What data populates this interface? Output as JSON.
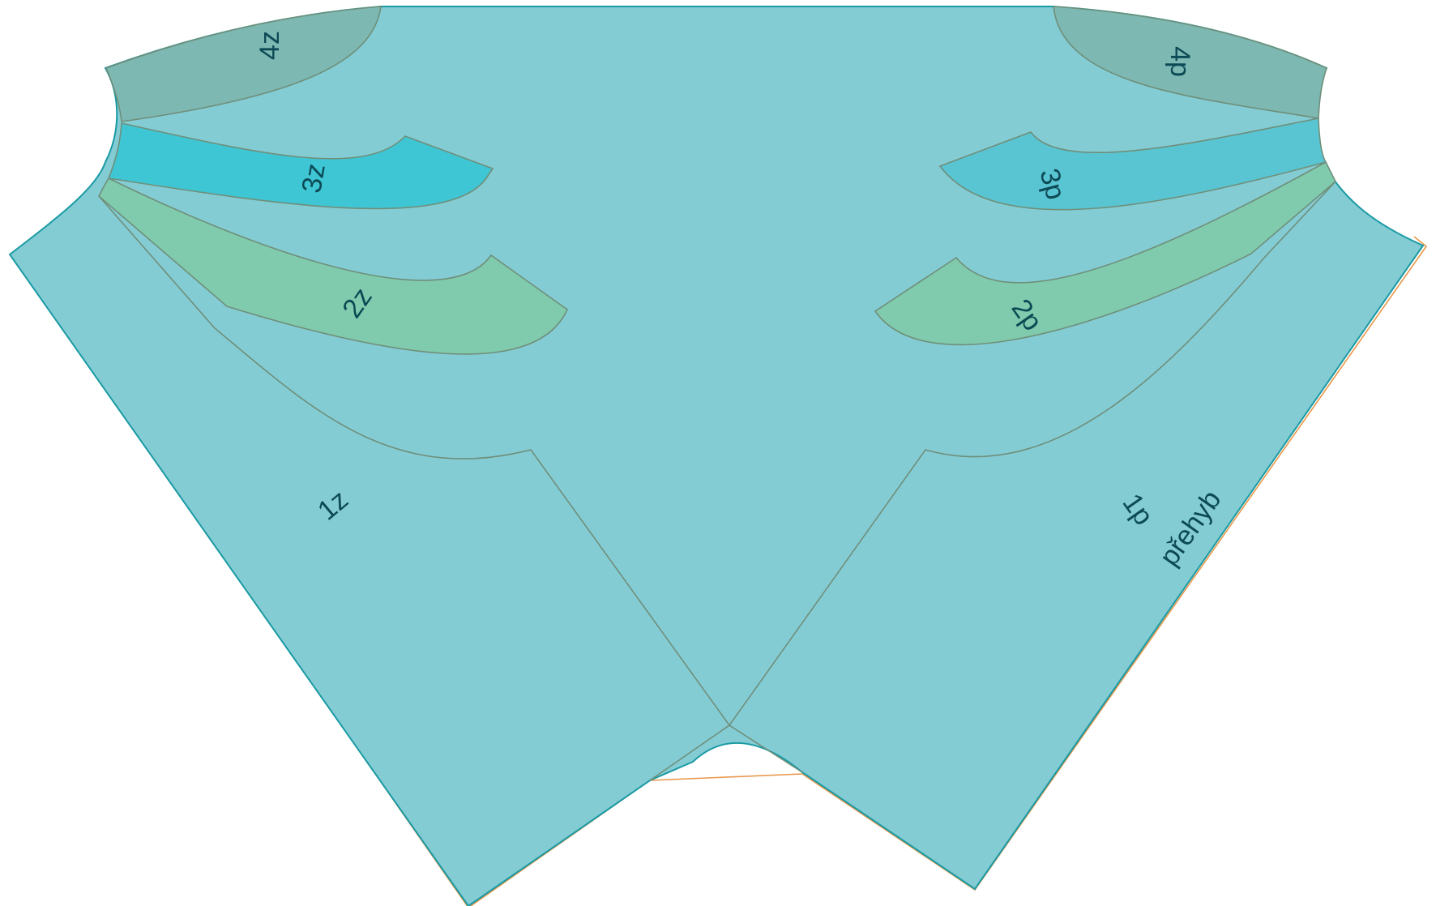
{
  "diagram": {
    "colors": {
      "background": "#ffffff",
      "main_fill": "#84ccd4",
      "main_stroke": "#1a9aa3",
      "seam_line": "#6f8f7a",
      "band_4_fill": "#7db8b3",
      "band_3z_fill": "#3fc6d5",
      "band_3p_fill": "#5ac5d2",
      "band_2_fill": "#80cbad",
      "offset_outline": "#e8974a",
      "label_text": "#0c4a55"
    },
    "labels": {
      "l4z": "4z",
      "l3z": "3z",
      "l2z": "2z",
      "l1z": "1z",
      "l4p": "4p",
      "l3p": "3p",
      "l2p": "2p",
      "l1p": "1p",
      "fold": "přehyb"
    }
  }
}
